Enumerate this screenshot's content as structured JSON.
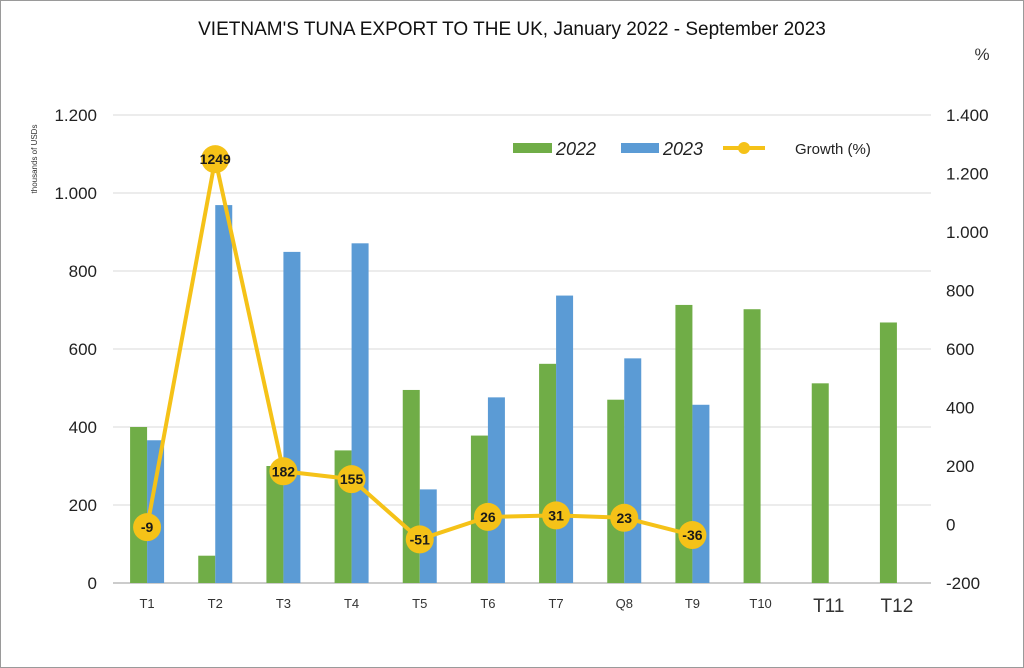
{
  "chart_data": {
    "type": "bar",
    "title": "VIETNAM'S TUNA EXPORT TO THE UK, January 2022 - September 2023",
    "ylabel": "thousands of USDs",
    "y2label": "%",
    "categories": [
      "T1",
      "T2",
      "T3",
      "T4",
      "T5",
      "T6",
      "T7",
      "Q8",
      "T9",
      "T10",
      "T11",
      "T12"
    ],
    "ylim": [
      0,
      1200
    ],
    "y_ticks": [
      0,
      200,
      400,
      600,
      800,
      1000,
      1200
    ],
    "y_tick_labels": [
      "0",
      "200",
      "400",
      "600",
      "800",
      "1.000",
      "1.200"
    ],
    "y2lim": [
      -200,
      1400
    ],
    "y2_ticks": [
      -200,
      0,
      200,
      400,
      600,
      800,
      1000,
      1200,
      1400
    ],
    "y2_tick_labels": [
      "-200",
      "0",
      "200",
      "400",
      "600",
      "800",
      "1.000",
      "1.200",
      "1.400"
    ],
    "grid": true,
    "legend_position": "top-right",
    "series": [
      {
        "name": "2022",
        "type": "bar",
        "axis": "left",
        "color": "#70ad47",
        "values": [
          400,
          70,
          300,
          340,
          495,
          378,
          562,
          470,
          713,
          702,
          512,
          668
        ]
      },
      {
        "name": "2023",
        "type": "bar",
        "axis": "left",
        "color": "#5b9bd5",
        "values": [
          366,
          969,
          849,
          871,
          240,
          476,
          737,
          576,
          457,
          null,
          null,
          null
        ]
      },
      {
        "name": "Growth (%)",
        "type": "line",
        "axis": "right",
        "color": "#f5c218",
        "values": [
          -9,
          1249,
          182,
          155,
          -51,
          26,
          31,
          23,
          -36,
          null,
          null,
          null
        ]
      }
    ]
  }
}
